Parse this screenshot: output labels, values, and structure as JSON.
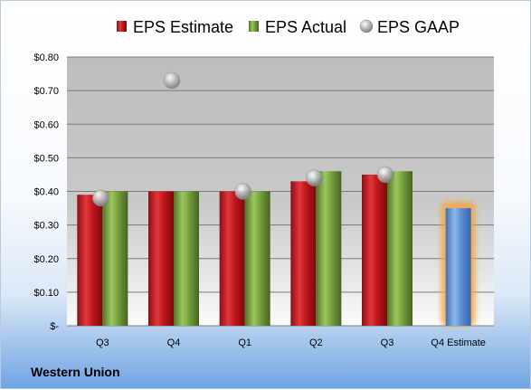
{
  "company_name": "Western Union",
  "chart_data": {
    "type": "bar",
    "categories": [
      "Q3",
      "Q4",
      "Q1",
      "Q2",
      "Q3",
      "Q4 Estimate"
    ],
    "series": [
      {
        "name": "EPS Estimate",
        "type": "bar",
        "values": [
          0.39,
          0.4,
          0.4,
          0.43,
          0.45,
          null
        ],
        "color": "#c0171c"
      },
      {
        "name": "EPS Actual",
        "type": "bar",
        "values": [
          0.4,
          0.4,
          0.4,
          0.46,
          0.46,
          null
        ],
        "color": "#6f9a3a"
      },
      {
        "name": "EPS GAAP",
        "type": "scatter",
        "values": [
          0.38,
          0.73,
          0.4,
          0.44,
          0.45,
          null
        ],
        "color": "#a8a8a8"
      },
      {
        "name": "",
        "type": "bar",
        "values": [
          null,
          null,
          null,
          null,
          null,
          0.35
        ],
        "color": "#5b8fd6",
        "highlight": "#f4a540"
      }
    ],
    "y_ticks": [
      0,
      0.1,
      0.2,
      0.3,
      0.4,
      0.5,
      0.6,
      0.7,
      0.8
    ],
    "y_tick_labels": [
      "$-",
      "$0.10",
      "$0.20",
      "$0.30",
      "$0.40",
      "$0.50",
      "$0.60",
      "$0.70",
      "$0.80"
    ],
    "ylim": [
      0,
      0.8
    ],
    "grid": true,
    "legend_position": "top",
    "title": "",
    "xlabel": "",
    "ylabel": ""
  }
}
